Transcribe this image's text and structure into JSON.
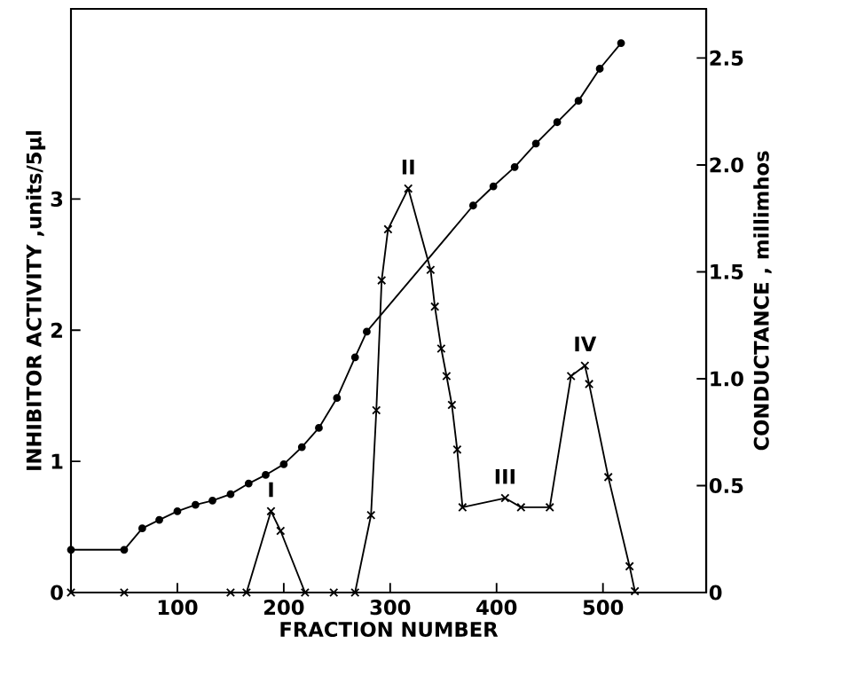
{
  "chart_data": {
    "type": "line",
    "xlabel": "FRACTION NUMBER",
    "ylabel": "INHIBITOR ACTIVITY ,units/5µl",
    "y2label": "CONDUCTANCE , millimhos",
    "xlim": [
      0,
      597
    ],
    "xticks": [
      100,
      200,
      300,
      400,
      500
    ],
    "ylim": [
      0,
      4.45
    ],
    "yticks": [
      0,
      1,
      2,
      3
    ],
    "y2lim": [
      0,
      2.73
    ],
    "y2ticks": [
      0,
      {
        "value": 0.5,
        "label": "0.5"
      },
      {
        "value": 1,
        "label": "1.0"
      },
      {
        "value": 1.5,
        "label": "1.5"
      },
      {
        "value": 2,
        "label": "2.0"
      },
      {
        "value": 2.5,
        "label": "2.5"
      }
    ],
    "series": [
      {
        "color": "#000000",
        "marker": "cross",
        "line_style": "solid",
        "x": [
          0,
          50,
          150,
          165,
          188,
          197,
          220,
          247,
          267,
          282,
          287,
          292,
          298,
          317,
          338,
          342,
          348,
          353,
          358,
          363,
          368,
          408,
          423,
          450,
          470,
          483,
          487,
          505,
          525,
          530
        ],
        "values": [
          0,
          0,
          0,
          0,
          0.62,
          0.47,
          0,
          0,
          0,
          0.59,
          1.39,
          2.38,
          2.77,
          3.08,
          2.46,
          2.18,
          1.86,
          1.65,
          1.43,
          1.09,
          0.65,
          0.72,
          0.65,
          0.65,
          1.65,
          1.73,
          1.59,
          0.88,
          0.2,
          0.01
        ]
      },
      {
        "color": "#000000",
        "marker": "circle",
        "line_style": "solid",
        "axis": "y2",
        "x": [
          0,
          50,
          67,
          83,
          100,
          117,
          133,
          150,
          167,
          183,
          200,
          217,
          233,
          250,
          267,
          278,
          378,
          397,
          417,
          437,
          457,
          477,
          497,
          517
        ],
        "values": [
          0.2,
          0.2,
          0.3,
          0.34,
          0.38,
          0.41,
          0.43,
          0.46,
          0.51,
          0.55,
          0.6,
          0.68,
          0.77,
          0.91,
          1.1,
          1.22,
          1.81,
          1.9,
          1.99,
          2.1,
          2.2,
          2.3,
          2.45,
          2.57
        ]
      }
    ],
    "annotations": [
      {
        "text": "I",
        "x": 188,
        "y": 0.62
      },
      {
        "text": "II",
        "x": 317,
        "y": 3.08
      },
      {
        "text": "III",
        "x": 408,
        "y": 0.72
      },
      {
        "text": "IV",
        "x": 483,
        "y": 1.73
      }
    ]
  }
}
